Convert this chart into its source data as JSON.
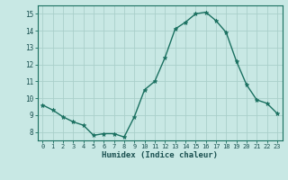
{
  "x": [
    0,
    1,
    2,
    3,
    4,
    5,
    6,
    7,
    8,
    9,
    10,
    11,
    12,
    13,
    14,
    15,
    16,
    17,
    18,
    19,
    20,
    21,
    22,
    23
  ],
  "y": [
    9.6,
    9.3,
    8.9,
    8.6,
    8.4,
    7.8,
    7.9,
    7.9,
    7.7,
    8.9,
    10.5,
    11.0,
    12.4,
    14.1,
    14.5,
    15.0,
    15.1,
    14.6,
    13.9,
    12.2,
    10.8,
    9.9,
    9.7,
    9.1
  ],
  "xlabel": "Humidex (Indice chaleur)",
  "ylim": [
    7.5,
    15.5
  ],
  "xlim": [
    -0.5,
    23.5
  ],
  "yticks": [
    8,
    9,
    10,
    11,
    12,
    13,
    14,
    15
  ],
  "xticks": [
    0,
    1,
    2,
    3,
    4,
    5,
    6,
    7,
    8,
    9,
    10,
    11,
    12,
    13,
    14,
    15,
    16,
    17,
    18,
    19,
    20,
    21,
    22,
    23
  ],
  "line_color": "#1a7060",
  "marker": "*",
  "bg_color": "#c8e8e4",
  "grid_color": "#aacfca",
  "tick_label_color": "#1a5050",
  "xlabel_color": "#1a5050"
}
